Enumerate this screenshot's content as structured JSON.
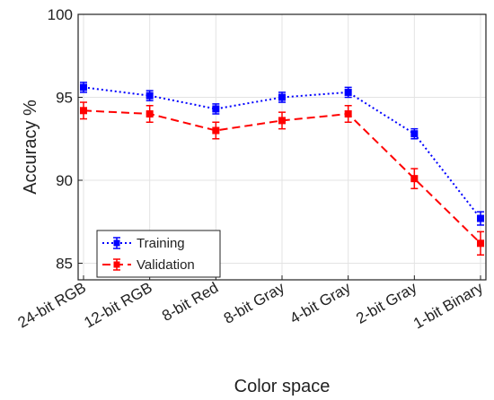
{
  "chart_data": {
    "type": "line",
    "xlabel": "Color space",
    "ylabel": "Accuracy %",
    "categories": [
      "24-bit RGB",
      "12-bit RGB",
      "8-bit Red",
      "8-bit Gray",
      "4-bit Gray",
      "2-bit Gray",
      "1-bit Binary"
    ],
    "ylim": [
      84,
      100
    ],
    "yticks": [
      85,
      90,
      95,
      100
    ],
    "grid": true,
    "legend_position": "bottom-left",
    "series": [
      {
        "name": "Training",
        "color": "#0000ff",
        "line_style": "dotted",
        "marker": "square",
        "values": [
          95.6,
          95.1,
          94.3,
          95.0,
          95.3,
          92.8,
          87.7
        ],
        "errors": [
          0.3,
          0.3,
          0.3,
          0.3,
          0.3,
          0.3,
          0.4
        ]
      },
      {
        "name": "Validation",
        "color": "#ff0000",
        "line_style": "dashed",
        "marker": "square",
        "values": [
          94.2,
          94.0,
          93.0,
          93.6,
          94.0,
          90.1,
          86.2
        ],
        "errors": [
          0.5,
          0.5,
          0.5,
          0.5,
          0.5,
          0.6,
          0.7
        ]
      }
    ]
  }
}
